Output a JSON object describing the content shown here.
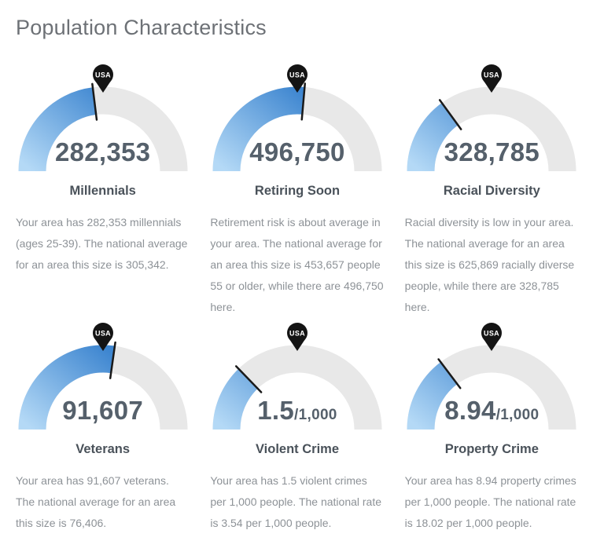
{
  "page_title": "Population Characteristics",
  "pin_label": "USA",
  "colors": {
    "fill_gradient_start": "#b4d9f6",
    "fill_gradient_end": "#3e86d0",
    "track": "#e8e8e8",
    "tick": "#1a1a1a",
    "pin": "#141414",
    "pin_text": "#ffffff",
    "title_text": "#6d7176",
    "value_text": "#55606b",
    "label_text": "#4a525a",
    "description_text": "#8d9297"
  },
  "chart_data": {
    "type": "gauge",
    "layout": "2 rows x 3 columns of semicircular gauges; USA national average marked by pin at top (90 deg); local value is blue fill ending at black tick",
    "gauges": [
      {
        "label": "Millennials",
        "value_display": "282,353",
        "value_suffix": "",
        "local_value": 282353,
        "national_average": 305342,
        "fill_angle_deg": 83,
        "marker_angle_deg": 90,
        "description": "Your area has 282,353 millennials (ages 25-39). The national average for an area this size is 305,342."
      },
      {
        "label": "Retiring Soon",
        "value_display": "496,750",
        "value_suffix": "",
        "local_value": 496750,
        "national_average": 453657,
        "fill_angle_deg": 95,
        "marker_angle_deg": 90,
        "description": "Retirement risk is about average in your area. The national average for an area this size is 453,657 people 55 or older, while there are 496,750 here."
      },
      {
        "label": "Racial Diversity",
        "value_display": "328,785",
        "value_suffix": "",
        "local_value": 328785,
        "national_average": 625869,
        "fill_angle_deg": 54,
        "marker_angle_deg": 90,
        "description": "Racial diversity is low in your area. The national average for an area this size is 625,869 racially diverse people, while there are 328,785 here."
      },
      {
        "label": "Veterans",
        "value_display": "91,607",
        "value_suffix": "",
        "local_value": 91607,
        "national_average": 76406,
        "fill_angle_deg": 98,
        "marker_angle_deg": 90,
        "description": "Your area has 91,607 veterans. The national average for an area this size is 76,406."
      },
      {
        "label": "Violent Crime",
        "value_display": "1.5",
        "value_suffix": "/1,000",
        "local_value": 1.5,
        "national_average": 3.54,
        "fill_angle_deg": 46,
        "marker_angle_deg": 90,
        "description": "Your area has 1.5 violent crimes per 1,000 people. The national rate is 3.54 per 1,000 people."
      },
      {
        "label": "Property Crime",
        "value_display": "8.94",
        "value_suffix": "/1,000",
        "local_value": 8.94,
        "national_average": 18.02,
        "fill_angle_deg": 53,
        "marker_angle_deg": 90,
        "description": "Your area has 8.94 property crimes per 1,000 people. The national rate is 18.02 per 1,000 people."
      }
    ]
  }
}
